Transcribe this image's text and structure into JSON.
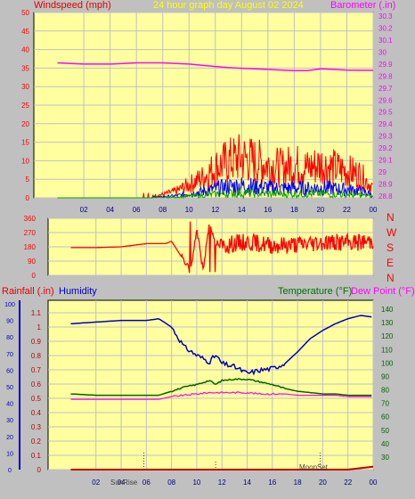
{
  "header": {
    "left_label": "Windspeed (mph)",
    "title": "24 hour graph day   August 02 2024",
    "right_label": "Barometer (.in)"
  },
  "colors": {
    "background": "#c0c0c0",
    "plot": "#ffffa0",
    "grid": "#c0c0c0",
    "wind": "#ff0000",
    "gust_blue": "#0000ff",
    "gust_green": "#00a000",
    "barometer": "#ff00ff",
    "humidity": "#0000c0",
    "temperature": "#006400",
    "dewpoint": "#ff00ff",
    "rain": "#c00000",
    "title": "#ffff00"
  },
  "x_ticks": [
    "02",
    "04",
    "06",
    "08",
    "10",
    "12",
    "14",
    "16",
    "18",
    "20",
    "22",
    "00"
  ],
  "wind_barometer": {
    "wind_ticks": [
      "0",
      "5",
      "10",
      "15",
      "20",
      "25",
      "30",
      "35",
      "40",
      "45",
      "50"
    ],
    "baro_ticks": [
      "28.8",
      "28.9",
      "29",
      "29.1",
      "29.2",
      "29.3",
      "29.4",
      "29.5",
      "29.6",
      "29.7",
      "29.8",
      "29.9",
      "30",
      "30.1",
      "30.2",
      "30.3"
    ]
  },
  "direction": {
    "ticks": [
      "0",
      "90",
      "180",
      "270",
      "360"
    ],
    "compass": [
      "N",
      "W",
      "S",
      "E",
      "N"
    ]
  },
  "lower": {
    "rain_label": "Rainfall (.in)",
    "humidity_label": "Humidity",
    "temp_label": "Temperature (°F)",
    "dew_label": "Dew Point (°F)",
    "humidity_ticks": [
      "0",
      "10",
      "20",
      "30",
      "40",
      "50",
      "60",
      "70",
      "80",
      "90",
      "100"
    ],
    "rain_ticks": [
      "0",
      "0.1",
      "0.2",
      "0.3",
      "0.4",
      "0.5",
      "0.6",
      "0.7",
      "0.8",
      "0.9",
      "1",
      "1.1"
    ],
    "temp_ticks": [
      "30",
      "40",
      "50",
      "60",
      "70",
      "80",
      "90",
      "100",
      "110",
      "120",
      "130",
      "140"
    ],
    "sunrise_label": "SunRise",
    "moonset_label": "MoonSet"
  },
  "chart_data": [
    {
      "type": "line",
      "x": [
        0,
        1,
        2,
        3,
        4,
        5,
        6,
        7,
        8,
        9,
        10,
        11,
        12,
        13,
        14,
        15,
        16,
        17,
        18,
        19,
        20,
        21,
        22,
        23,
        24
      ],
      "series": [
        {
          "axis": "Windspeed (mph)",
          "values": [
            0,
            0,
            0,
            0,
            0,
            0,
            0,
            0.5,
            1,
            2,
            4,
            6,
            9,
            11,
            12,
            11,
            10,
            9,
            10,
            9,
            10,
            9,
            8,
            7,
            3
          ]
        },
        {
          "axis": "Barometer (.in)",
          "values": [
            29.91,
            29.905,
            29.9,
            29.9,
            29.9,
            29.905,
            29.91,
            29.91,
            29.91,
            29.905,
            29.9,
            29.89,
            29.88,
            29.87,
            29.865,
            29.86,
            29.855,
            29.85,
            29.845,
            29.845,
            29.86,
            29.855,
            29.85,
            29.848,
            29.848
          ]
        }
      ],
      "xlabel": "",
      "ylim_wind": [
        0,
        50
      ],
      "ylim_baro": [
        28.8,
        30.3
      ]
    },
    {
      "type": "line",
      "x": [
        0,
        2,
        4,
        6,
        7.5,
        8,
        9,
        9.5,
        10,
        10.5,
        11,
        11.5,
        12,
        13,
        14,
        16,
        18,
        20,
        22,
        24
      ],
      "series": [
        {
          "axis": "direction (deg)",
          "values": [
            175,
            175,
            180,
            200,
            200,
            215,
            90,
            25,
            290,
            30,
            330,
            210,
            185,
            200,
            210,
            190,
            195,
            210,
            205,
            215
          ]
        }
      ],
      "ylim": [
        0,
        360
      ]
    },
    {
      "type": "line",
      "x": [
        0,
        2,
        4,
        6,
        7,
        8,
        9,
        10,
        11,
        11.5,
        12,
        13,
        14,
        15,
        16,
        17,
        18,
        19,
        20,
        21,
        22,
        23,
        24
      ],
      "series": [
        {
          "name": "Humidity",
          "axis": "Humidity",
          "values": [
            88,
            89,
            90,
            90,
            91,
            86,
            74,
            69,
            65,
            69,
            64,
            62,
            58,
            60,
            61,
            64,
            71,
            79,
            84,
            88,
            91,
            93,
            92
          ]
        },
        {
          "name": "Temperature (°F)",
          "axis": "Temperature (°F)",
          "values": [
            77,
            76,
            76,
            76,
            76,
            79,
            82,
            84,
            87,
            84,
            87,
            88,
            88,
            86,
            84,
            81,
            79,
            78,
            77,
            77,
            76,
            76,
            76
          ]
        },
        {
          "name": "Dew Point (°F)",
          "axis": "Temperature (°F)",
          "values": [
            73,
            73,
            73,
            73,
            73,
            75,
            76,
            77,
            78,
            78,
            78,
            78,
            78,
            77,
            77,
            77,
            76,
            76,
            76,
            76,
            75,
            75,
            75
          ]
        },
        {
          "name": "Rainfall (.in)",
          "axis": "Rainfall (.in)",
          "values": [
            0,
            0,
            0,
            0,
            0,
            0,
            0,
            0,
            0,
            0,
            0,
            0,
            0,
            0,
            0,
            0,
            0,
            0,
            0,
            0,
            0,
            0.01,
            0.02
          ]
        }
      ],
      "ylim_humidity": [
        0,
        100
      ],
      "ylim_rain": [
        0,
        1.1
      ],
      "ylim_temp": [
        30,
        145
      ]
    }
  ]
}
